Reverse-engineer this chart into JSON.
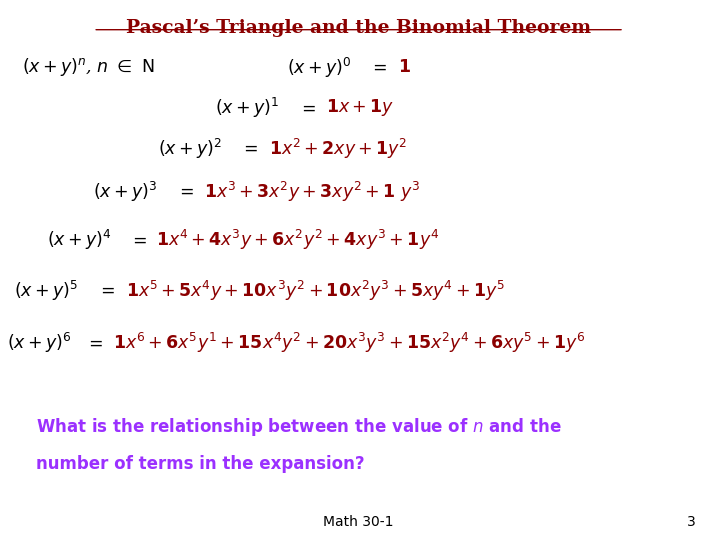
{
  "title": "Pascal’s Triangle and the Binomial Theorem",
  "bg_color": "#ffffff",
  "title_color": "#8B0000",
  "red_color": "#8B0000",
  "purple_color": "#9B30FF",
  "black_color": "#000000",
  "footer_text": "Math 30-1",
  "footer_number": "3"
}
